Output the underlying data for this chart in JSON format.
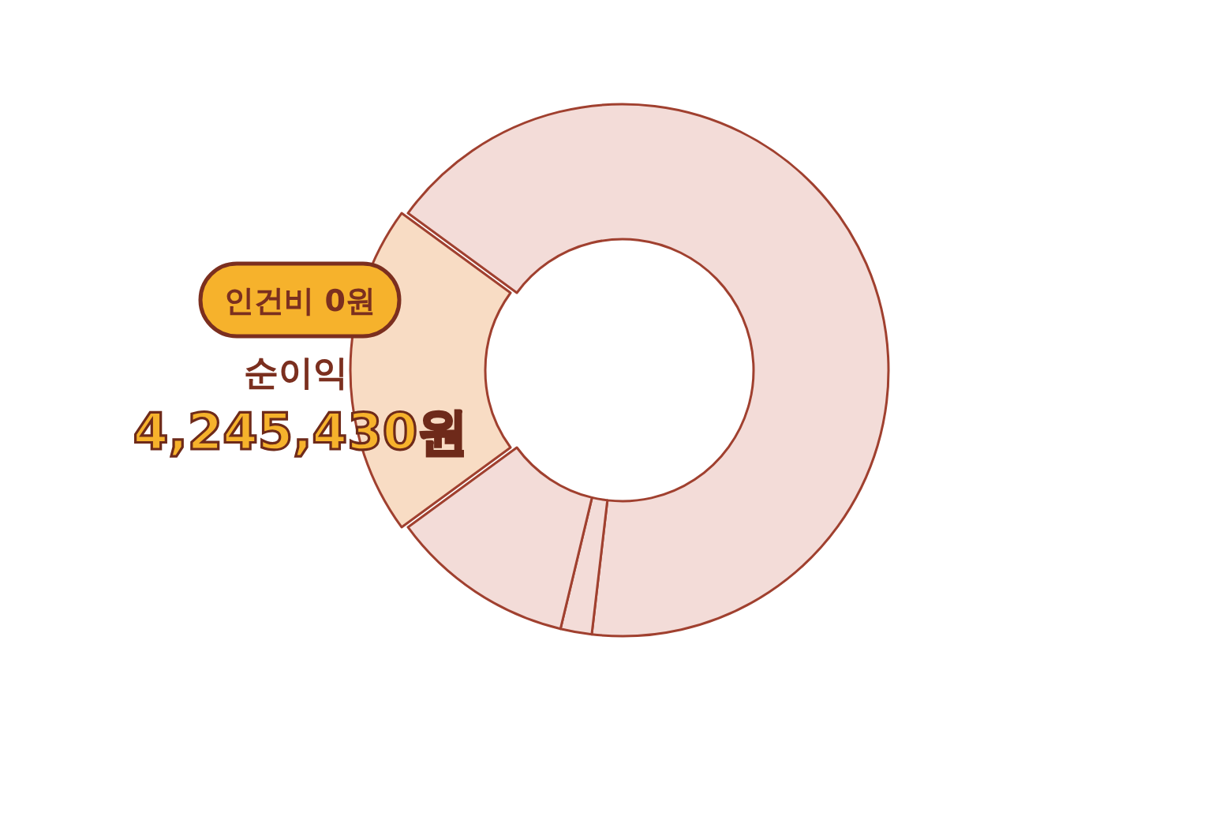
{
  "chart_data": {
    "type": "donut",
    "categories": [
      "인건비 0원",
      null,
      null,
      null
    ],
    "values": [
      20.1,
      66.8,
      1.9,
      11.2
    ],
    "colors": [
      "#f8dcc4",
      "#f3dcd8",
      "#f3dcd8",
      "#f3dcd8"
    ],
    "annotations": [
      "순이익",
      "4,245,430원"
    ]
  }
}
